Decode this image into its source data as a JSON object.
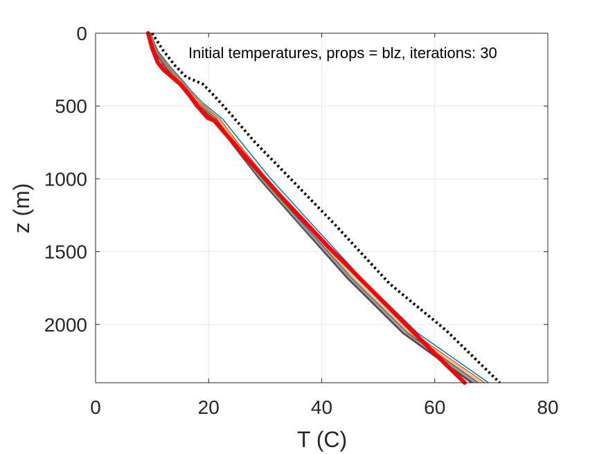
{
  "chart_data": {
    "type": "line",
    "title": "",
    "annotation": "Initial temperatures, props = blz, iterations: 30",
    "xlabel": "T (C)",
    "ylabel": "z (m)",
    "xlim": [
      0,
      80
    ],
    "ylim": [
      0,
      2400
    ],
    "y_reversed": true,
    "x_ticks": [
      0,
      20,
      40,
      60,
      80
    ],
    "y_ticks": [
      0,
      500,
      1000,
      1500,
      2000
    ],
    "x_tick_labels": [
      "0",
      "20",
      "40",
      "60",
      "80"
    ],
    "y_tick_labels": [
      "0",
      "500",
      "1000",
      "1500",
      "2000"
    ],
    "grid": true,
    "legend": "none",
    "series": [
      {
        "style": "dotted",
        "color": "#000000",
        "x": [
          10.0,
          12.0,
          14.0,
          16.0,
          19.0,
          21.0,
          24.0,
          28.0,
          34.0,
          42.0,
          52.0,
          62.0,
          71.5
        ],
        "y": [
          0,
          120,
          220,
          300,
          350,
          430,
          560,
          740,
          980,
          1300,
          1720,
          2040,
          2400
        ]
      },
      {
        "color": "#0072BD",
        "x": [
          9.7,
          11.0,
          13.0,
          15.5,
          17.0,
          19.0,
          22.5,
          26.0,
          31.0,
          38.0,
          47.0,
          57.0,
          69.5
        ],
        "y": [
          0,
          120,
          220,
          330,
          400,
          480,
          590,
          760,
          1000,
          1300,
          1680,
          2060,
          2400
        ]
      },
      {
        "color": "#D95319",
        "x": [
          9.6,
          10.8,
          12.7,
          15.2,
          16.7,
          18.6,
          22.0,
          25.3,
          30.3,
          37.2,
          46.2,
          56.2,
          68.8
        ],
        "y": [
          0,
          120,
          220,
          330,
          400,
          480,
          590,
          760,
          1000,
          1300,
          1680,
          2060,
          2400
        ]
      },
      {
        "color": "#EDB120",
        "x": [
          9.6,
          10.7,
          12.5,
          15.0,
          16.5,
          18.3,
          21.7,
          25.0,
          29.9,
          36.8,
          45.7,
          55.7,
          68.2
        ],
        "y": [
          0,
          120,
          220,
          330,
          400,
          480,
          590,
          760,
          1000,
          1300,
          1680,
          2060,
          2400
        ]
      },
      {
        "color": "#7E2F8E",
        "x": [
          9.5,
          10.6,
          12.4,
          14.8,
          16.3,
          18.1,
          21.4,
          24.7,
          29.6,
          36.5,
          45.3,
          55.3,
          67.7
        ],
        "y": [
          0,
          120,
          220,
          330,
          400,
          480,
          590,
          760,
          1000,
          1300,
          1680,
          2060,
          2400
        ]
      },
      {
        "color": "#77AC30",
        "x": [
          9.5,
          10.5,
          12.3,
          14.7,
          16.2,
          18.0,
          21.2,
          24.5,
          29.4,
          36.2,
          45.0,
          55.0,
          67.3
        ],
        "y": [
          0,
          120,
          220,
          330,
          400,
          480,
          590,
          760,
          1000,
          1300,
          1680,
          2060,
          2400
        ]
      },
      {
        "color": "#4DBEEE",
        "x": [
          9.5,
          10.5,
          12.2,
          14.6,
          16.1,
          17.9,
          21.0,
          24.3,
          29.2,
          36.0,
          44.8,
          54.7,
          67.0
        ],
        "y": [
          0,
          120,
          220,
          330,
          400,
          480,
          590,
          760,
          1000,
          1300,
          1680,
          2060,
          2400
        ]
      },
      {
        "color": "#A2142F",
        "x": [
          9.4,
          10.4,
          12.1,
          14.5,
          16.0,
          17.8,
          20.9,
          24.2,
          29.0,
          35.8,
          44.6,
          54.5,
          66.7
        ],
        "y": [
          0,
          120,
          220,
          330,
          400,
          480,
          590,
          760,
          1000,
          1300,
          1680,
          2060,
          2400
        ]
      },
      {
        "color": "#555555",
        "x": [
          9.4,
          10.4,
          12.0,
          14.4,
          15.9,
          17.7,
          20.8,
          24.1,
          28.9,
          35.7,
          44.4,
          54.3,
          66.4
        ],
        "y": [
          0,
          120,
          220,
          330,
          400,
          480,
          590,
          760,
          1000,
          1300,
          1680,
          2060,
          2400
        ]
      },
      {
        "style": "thick",
        "color": "#FF0000",
        "x": [
          9.3,
          10.0,
          11.0,
          12.0,
          13.5,
          15.0,
          16.5,
          18.0,
          19.8,
          21.0,
          23.0,
          27.0,
          33.0,
          41.0,
          51.0,
          60.0,
          65.3
        ],
        "y": [
          0,
          100,
          200,
          250,
          300,
          350,
          420,
          500,
          580,
          600,
          690,
          870,
          1130,
          1460,
          1850,
          2200,
          2400
        ]
      }
    ]
  }
}
